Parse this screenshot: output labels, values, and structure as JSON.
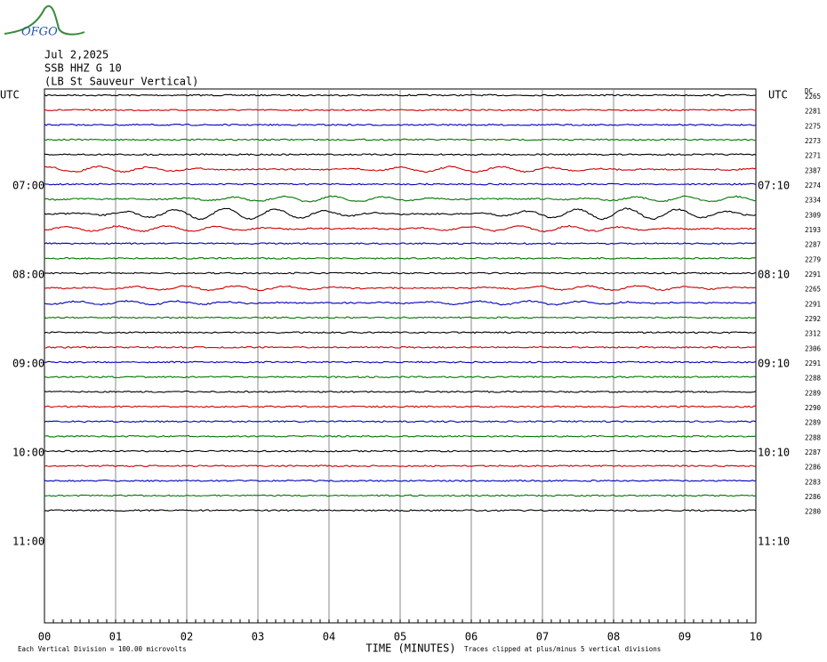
{
  "header": {
    "logo": "OFGO",
    "date": "Jul 2,2025",
    "station": "SSB HHZ G 10",
    "location": "(LB  St Sauveur Vertical)"
  },
  "left_label": "UTC",
  "right_label": "UTC",
  "dc_label": "DC",
  "left_times": [
    "07:00",
    "08:00",
    "09:00",
    "10:00",
    "11:00"
  ],
  "right_times": [
    "07:10",
    "08:10",
    "09:10",
    "10:10",
    "11:10"
  ],
  "trace_colors": [
    "#000000",
    "#cc0000",
    "#0000bb",
    "#007700"
  ],
  "traces": [
    2265,
    2281,
    2275,
    2273,
    2271,
    2387,
    2274,
    2334,
    2309,
    2193,
    2287,
    2279,
    2291,
    2265,
    2291,
    2292,
    2312,
    2306,
    2291,
    2288,
    2289,
    2290,
    2289,
    2288,
    2287,
    2286,
    2283,
    2286,
    2280
  ],
  "x_ticks": [
    "00",
    "01",
    "02",
    "03",
    "04",
    "05",
    "06",
    "07",
    "08",
    "09",
    "10"
  ],
  "footer": {
    "division": "Each Vertical Division =  100.00 microvolts",
    "axis_title": "TIME (MINUTES)",
    "clip_note": "Traces clipped at plus/minus 5 vertical divisions"
  }
}
